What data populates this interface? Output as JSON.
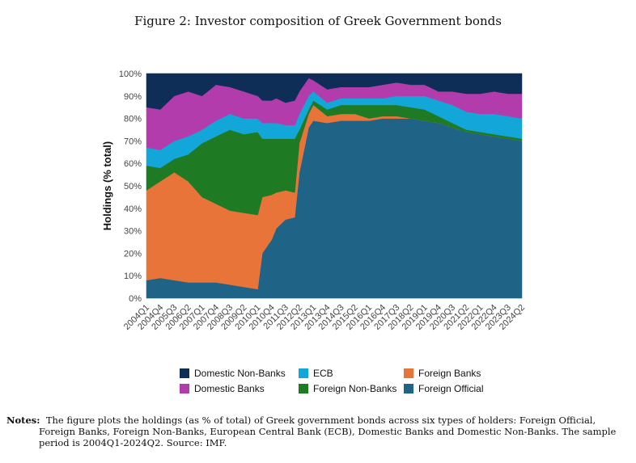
{
  "figure_title": "Figure 2: Investor composition of Greek Government bonds",
  "notes": {
    "lead": "Notes:",
    "text": "The figure plots the holdings (as % of total) of Greek government bonds across six types of holders: Foreign Official, Foreign Banks, Foreign Non-Banks, European Central Bank (ECB), Domestic Banks and Domestic Non-Banks. The sample period is 2004Q1-2024Q2. Source: IMF."
  },
  "chart_data": {
    "type": "area",
    "stacked": true,
    "ylabel": "Holdings (% total)",
    "xlabel": "",
    "ylim": [
      0,
      100
    ],
    "yticks": [
      "0%",
      "10%",
      "20%",
      "30%",
      "40%",
      "50%",
      "60%",
      "70%",
      "80%",
      "90%",
      "100%"
    ],
    "xtick_labels": [
      "2004Q1",
      "2004Q4",
      "2005Q3",
      "2006Q2",
      "2007Q1",
      "2007Q4",
      "2008Q3",
      "2009Q2",
      "2010Q1",
      "2010Q4",
      "2011Q3",
      "2012Q2",
      "2013Q1",
      "2013Q4",
      "2014Q3",
      "2015Q2",
      "2016Q1",
      "2016Q4",
      "2017Q3",
      "2018Q2",
      "2019Q1",
      "2019Q4",
      "2020Q3",
      "2021Q2",
      "2022Q1",
      "2022Q4",
      "2023Q3",
      "2024Q2"
    ],
    "x": [
      "2004Q1",
      "2004Q4",
      "2005Q3",
      "2006Q2",
      "2007Q1",
      "2007Q4",
      "2008Q3",
      "2009Q2",
      "2010Q1",
      "2010Q2",
      "2010Q4",
      "2011Q1",
      "2011Q3",
      "2012Q1",
      "2012Q2",
      "2012Q4",
      "2013Q1",
      "2013Q4",
      "2014Q3",
      "2015Q2",
      "2016Q1",
      "2016Q4",
      "2017Q3",
      "2018Q2",
      "2019Q1",
      "2019Q4",
      "2020Q3",
      "2021Q2",
      "2022Q1",
      "2022Q4",
      "2023Q3",
      "2024Q2"
    ],
    "series": [
      {
        "name": "Foreign Official",
        "color": "#1f6386",
        "values": [
          8,
          9,
          8,
          7,
          7,
          7,
          6,
          5,
          4,
          20,
          26,
          31,
          35,
          36,
          56,
          76,
          79,
          78,
          79,
          79,
          79,
          80,
          80,
          80,
          79,
          78,
          76,
          74,
          73,
          72,
          71,
          70
        ]
      },
      {
        "name": "Foreign Banks",
        "color": "#e8743a",
        "values": [
          40,
          43,
          48,
          45,
          38,
          35,
          33,
          33,
          33,
          25,
          20,
          16,
          13,
          11,
          13,
          6,
          7,
          3,
          3,
          3,
          1,
          1,
          1,
          0,
          0,
          0,
          0,
          0,
          0,
          0,
          0,
          0
        ]
      },
      {
        "name": "Foreign Non-Banks",
        "color": "#1f7a24",
        "values": [
          11,
          6,
          6,
          12,
          24,
          30,
          36,
          35,
          37,
          26,
          25,
          24,
          23,
          24,
          6,
          2,
          2,
          3,
          4,
          4,
          6,
          5,
          5,
          5,
          5,
          3,
          2,
          1,
          1,
          1,
          1,
          1
        ]
      },
      {
        "name": "ECB",
        "color": "#13a6d8",
        "values": [
          8,
          8,
          8,
          8,
          6,
          7,
          7,
          7,
          6,
          7,
          7,
          7,
          6,
          6,
          7,
          6,
          4,
          3,
          3,
          3,
          3,
          3,
          4,
          5,
          6,
          7,
          8,
          8,
          8,
          9,
          9,
          9
        ]
      },
      {
        "name": "Domestic Banks",
        "color": "#b23cac",
        "values": [
          18,
          18,
          20,
          20,
          15,
          16,
          12,
          12,
          10,
          10,
          10,
          11,
          10,
          11,
          10,
          8,
          5,
          6,
          5,
          5,
          5,
          6,
          6,
          5,
          5,
          4,
          6,
          8,
          9,
          10,
          10,
          11
        ]
      },
      {
        "name": "Domestic Non-Banks",
        "color": "#0f2e57",
        "values": [
          15,
          16,
          10,
          8,
          10,
          5,
          6,
          8,
          10,
          12,
          12,
          11,
          13,
          12,
          8,
          2,
          3,
          7,
          6,
          6,
          6,
          5,
          4,
          5,
          5,
          8,
          8,
          9,
          9,
          8,
          9,
          9
        ]
      }
    ],
    "legend": {
      "placement": "bottom",
      "entries": [
        "Domestic Non-Banks",
        "ECB",
        "Foreign Banks",
        "Domestic Banks",
        "Foreign Non-Banks",
        "Foreign Official"
      ]
    }
  }
}
